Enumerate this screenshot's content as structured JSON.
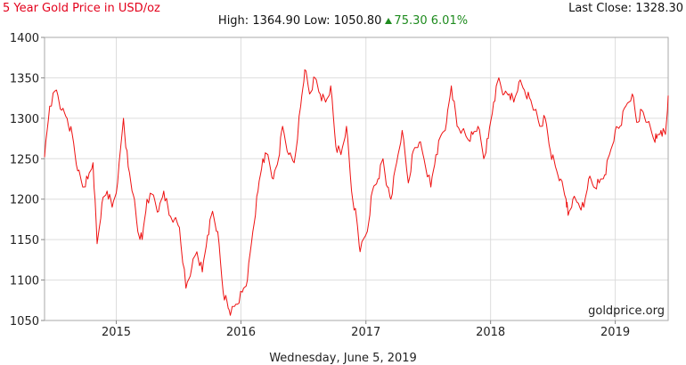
{
  "header": {
    "title": "5 Year Gold Price in USD/oz",
    "last_close": "Last Close: 1328.30",
    "high_label": "High:",
    "high_value": "1364.90",
    "low_label": "Low:",
    "low_value": "1050.80",
    "change": "75.30 6.01%"
  },
  "footer": {
    "date": "Wednesday, June 5, 2019",
    "source": "goldprice.org"
  },
  "colors": {
    "line": "#ee1111",
    "title": "#e3001b",
    "up": "#1e8b1e",
    "grid": "#dddddd"
  },
  "chart_data": {
    "type": "line",
    "title": "5 Year Gold Price in USD/oz",
    "xlabel": "",
    "ylabel": "",
    "ylim": [
      1050,
      1400
    ],
    "xlim": [
      "2014-06-05",
      "2019-06-05"
    ],
    "grid": true,
    "yticks": [
      1050,
      1100,
      1150,
      1200,
      1250,
      1300,
      1350,
      1400
    ],
    "xticks": [
      {
        "label": "2015",
        "date": "2015-01-01"
      },
      {
        "label": "2016",
        "date": "2016-01-01"
      },
      {
        "label": "2017",
        "date": "2017-01-01"
      },
      {
        "label": "2018",
        "date": "2018-01-01"
      },
      {
        "label": "2019",
        "date": "2019-01-01"
      }
    ],
    "series": [
      {
        "x": [
          "2014-06-05",
          "2014-06-20",
          "2014-07-10",
          "2014-07-25",
          "2014-08-10",
          "2014-08-25",
          "2014-09-10",
          "2014-09-25",
          "2014-10-10",
          "2014-10-25",
          "2014-11-06",
          "2014-11-20",
          "2014-12-05",
          "2014-12-20",
          "2015-01-05",
          "2015-01-22",
          "2015-02-05",
          "2015-02-20",
          "2015-03-05",
          "2015-03-18",
          "2015-04-01",
          "2015-04-20",
          "2015-05-05",
          "2015-05-20",
          "2015-06-05",
          "2015-06-20",
          "2015-07-05",
          "2015-07-24",
          "2015-08-10",
          "2015-08-25",
          "2015-09-10",
          "2015-09-25",
          "2015-10-10",
          "2015-10-25",
          "2015-11-10",
          "2015-11-25",
          "2015-12-03",
          "2015-12-17",
          "2016-01-05",
          "2016-01-20",
          "2016-02-05",
          "2016-02-20",
          "2016-03-05",
          "2016-03-20",
          "2016-04-05",
          "2016-04-20",
          "2016-05-02",
          "2016-05-20",
          "2016-06-05",
          "2016-06-24",
          "2016-07-06",
          "2016-07-20",
          "2016-08-05",
          "2016-08-20",
          "2016-09-05",
          "2016-09-20",
          "2016-10-05",
          "2016-10-20",
          "2016-11-05",
          "2016-11-20",
          "2016-12-05",
          "2016-12-15",
          "2017-01-05",
          "2017-01-20",
          "2017-02-05",
          "2017-02-20",
          "2017-03-05",
          "2017-03-15",
          "2017-04-01",
          "2017-04-17",
          "2017-05-05",
          "2017-05-20",
          "2017-06-06",
          "2017-06-20",
          "2017-07-10",
          "2017-07-25",
          "2017-08-10",
          "2017-08-25",
          "2017-09-08",
          "2017-09-25",
          "2017-10-10",
          "2017-10-25",
          "2017-11-10",
          "2017-11-25",
          "2017-12-12",
          "2017-12-25",
          "2018-01-10",
          "2018-01-25",
          "2018-02-10",
          "2018-02-25",
          "2018-03-10",
          "2018-03-25",
          "2018-04-10",
          "2018-04-25",
          "2018-05-10",
          "2018-05-25",
          "2018-06-10",
          "2018-06-25",
          "2018-07-10",
          "2018-07-25",
          "2018-08-10",
          "2018-08-16",
          "2018-08-30",
          "2018-09-15",
          "2018-10-01",
          "2018-10-15",
          "2018-10-30",
          "2018-11-15",
          "2018-12-01",
          "2018-12-15",
          "2019-01-01",
          "2019-01-15",
          "2019-02-01",
          "2019-02-20",
          "2019-03-05",
          "2019-03-20",
          "2019-04-05",
          "2019-04-23",
          "2019-05-02",
          "2019-05-15",
          "2019-05-28",
          "2019-06-05"
        ],
        "y": [
          1252,
          1315,
          1335,
          1310,
          1300,
          1280,
          1235,
          1215,
          1225,
          1245,
          1145,
          1195,
          1210,
          1190,
          1220,
          1300,
          1240,
          1205,
          1160,
          1150,
          1200,
          1205,
          1185,
          1210,
          1180,
          1175,
          1165,
          1090,
          1115,
          1135,
          1110,
          1155,
          1185,
          1160,
          1085,
          1065,
          1060,
          1070,
          1085,
          1100,
          1160,
          1210,
          1250,
          1255,
          1225,
          1250,
          1290,
          1255,
          1245,
          1315,
          1360,
          1330,
          1350,
          1330,
          1320,
          1340,
          1265,
          1255,
          1290,
          1210,
          1175,
          1135,
          1160,
          1210,
          1225,
          1250,
          1215,
          1200,
          1245,
          1285,
          1220,
          1260,
          1270,
          1250,
          1215,
          1255,
          1280,
          1295,
          1340,
          1290,
          1285,
          1275,
          1280,
          1290,
          1250,
          1275,
          1320,
          1350,
          1330,
          1330,
          1320,
          1345,
          1335,
          1325,
          1310,
          1290,
          1300,
          1260,
          1240,
          1225,
          1200,
          1180,
          1200,
          1195,
          1190,
          1225,
          1215,
          1220,
          1230,
          1255,
          1285,
          1290,
          1315,
          1330,
          1295,
          1310,
          1295,
          1275,
          1275,
          1285,
          1280,
          1328
        ]
      }
    ]
  }
}
